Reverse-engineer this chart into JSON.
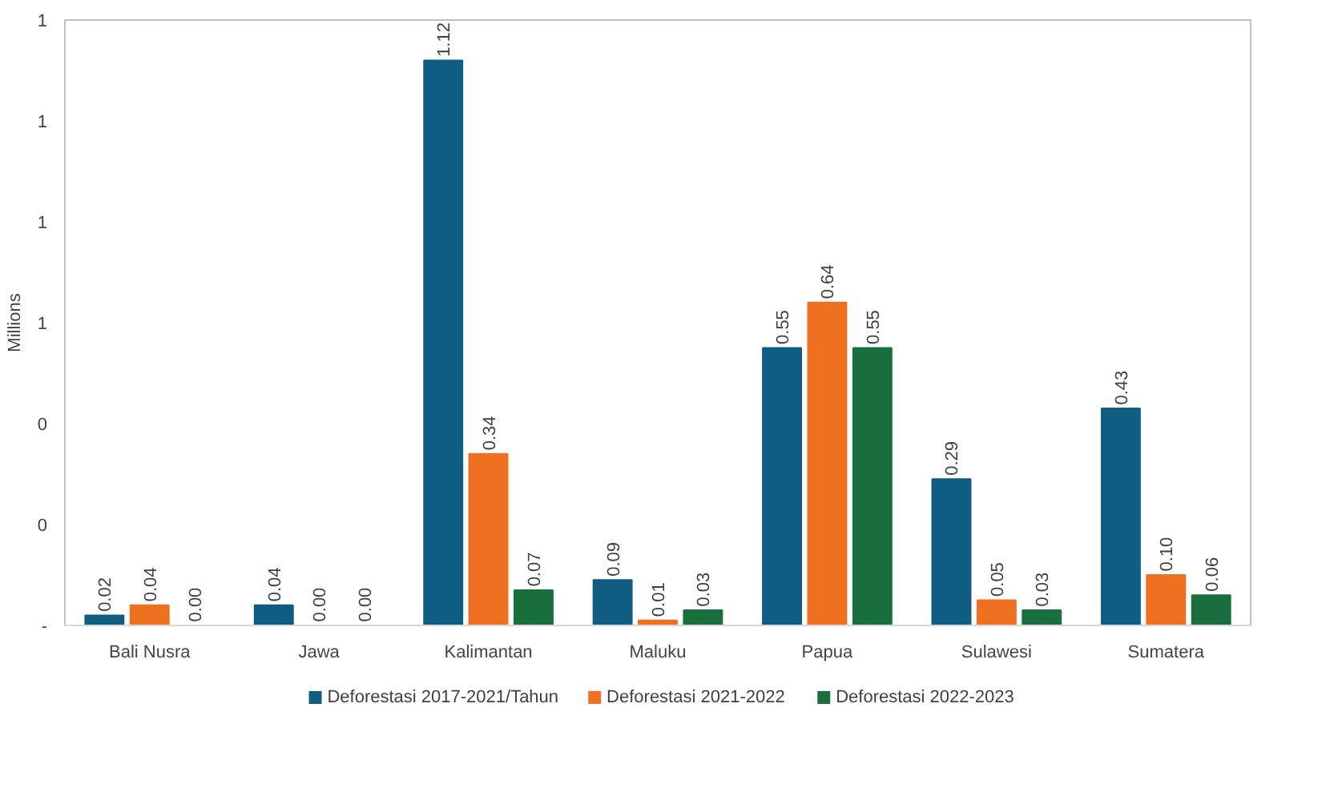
{
  "chart_data": {
    "type": "bar",
    "ylabel": "Millions",
    "categories": [
      "Bali Nusra",
      "Jawa",
      "Kalimantan",
      "Maluku",
      "Papua",
      "Sulawesi",
      "Sumatera"
    ],
    "series": [
      {
        "name": "Deforestasi 2017-2021/Tahun",
        "color": "#0f5d82",
        "values": [
          0.02,
          0.04,
          1.12,
          0.09,
          0.55,
          0.29,
          0.43
        ],
        "value_labels": [
          "0.02",
          "0.04",
          "1.12",
          "0.09",
          "0.55",
          "0.29",
          "0.43"
        ]
      },
      {
        "name": "Deforestasi 2021-2022",
        "color": "#f07022",
        "values": [
          0.04,
          0.0,
          0.34,
          0.01,
          0.64,
          0.05,
          0.1
        ],
        "value_labels": [
          "0.04",
          "0.00",
          "0.34",
          "0.01",
          "0.64",
          "0.05",
          "0.10"
        ]
      },
      {
        "name": "Deforestasi 2022-2023",
        "color": "#19703c",
        "values": [
          0.0,
          0.0,
          0.07,
          0.03,
          0.55,
          0.03,
          0.06
        ],
        "value_labels": [
          "0.00",
          "0.00",
          "0.07",
          "0.03",
          "0.55",
          "0.03",
          "0.06"
        ]
      }
    ],
    "ylim": [
      0,
      1.2
    ],
    "yticks": [
      {
        "value": 0,
        "label": "-"
      },
      {
        "value": 0.2,
        "label": "0"
      },
      {
        "value": 0.4,
        "label": "0"
      },
      {
        "value": 0.6,
        "label": "1"
      },
      {
        "value": 0.8,
        "label": "1"
      },
      {
        "value": 1.0,
        "label": "1"
      },
      {
        "value": 1.2,
        "label": "1"
      }
    ],
    "grid": false,
    "legend": "bottom"
  }
}
